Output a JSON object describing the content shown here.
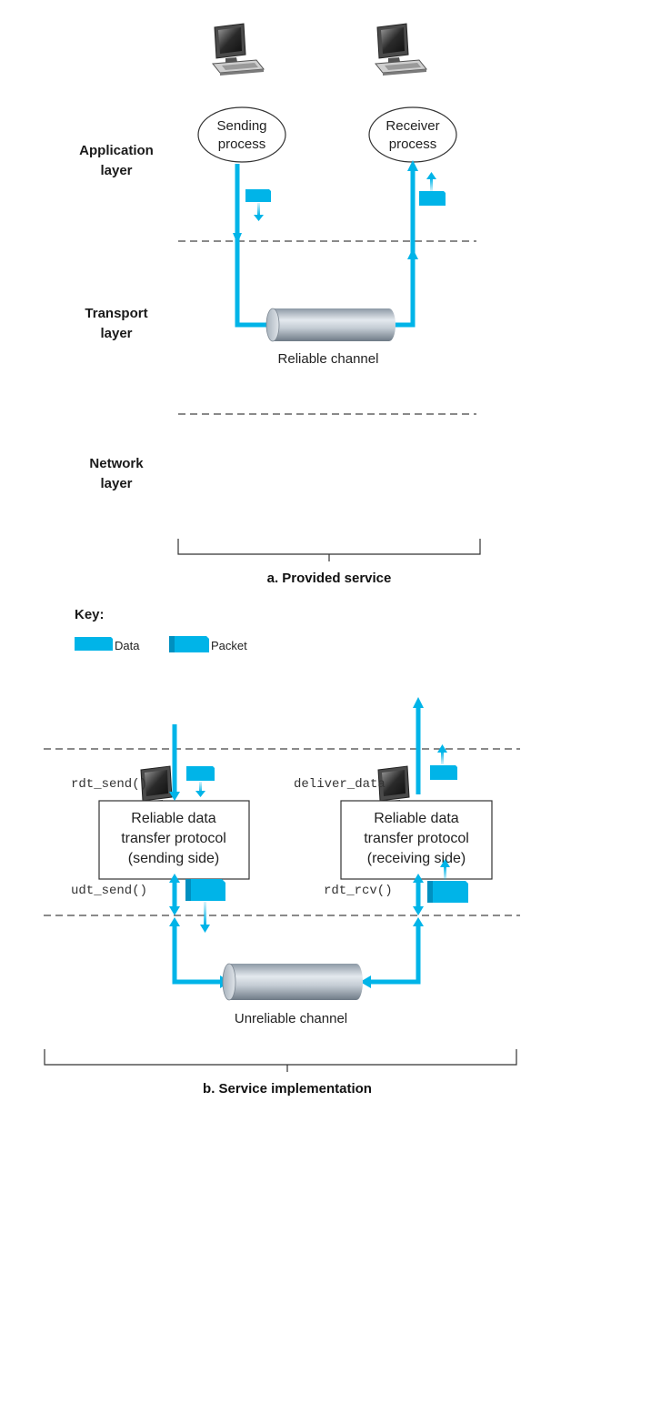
{
  "colors": {
    "accent": "#00b4e8",
    "data": "#00b4e8",
    "line": "#333333"
  },
  "panel_a": {
    "layers": {
      "application": [
        "Application",
        "layer"
      ],
      "transport": [
        "Transport",
        "layer"
      ],
      "network": [
        "Network",
        "layer"
      ]
    },
    "sending_process": [
      "Sending",
      "process"
    ],
    "receiver_process": [
      "Receiver",
      "process"
    ],
    "channel_label": "Reliable channel",
    "caption": "a. Provided service"
  },
  "key": {
    "title": "Key:",
    "data_label": "Data",
    "packet_label": "Packet"
  },
  "panel_b": {
    "rdt_send": "rdt_send()",
    "udt_send": "udt_send()",
    "deliver_data": "deliver_data",
    "rdt_rcv": "rdt_rcv()",
    "sender_box": [
      "Reliable data",
      "transfer protocol",
      "(sending side)"
    ],
    "receiver_box": [
      "Reliable data",
      "transfer protocol",
      "(receiving side)"
    ],
    "channel_label": "Unreliable channel",
    "caption": "b. Service implementation"
  }
}
